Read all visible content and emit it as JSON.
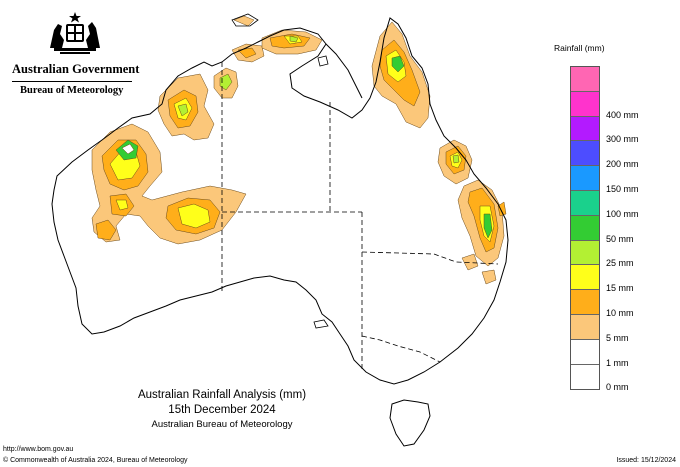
{
  "header": {
    "government": "Australian Government",
    "bureau": "Bureau of Meteorology"
  },
  "legend": {
    "title": "Rainfall (mm)",
    "classes": [
      {
        "label": "",
        "color": "#ff66b3"
      },
      {
        "label": "400 mm",
        "color": "#ff33cc"
      },
      {
        "label": "300 mm",
        "color": "#b31aff"
      },
      {
        "label": "200 mm",
        "color": "#4d4dff"
      },
      {
        "label": "150 mm",
        "color": "#1a99ff"
      },
      {
        "label": "100 mm",
        "color": "#1ad18c"
      },
      {
        "label": "50 mm",
        "color": "#33cc33"
      },
      {
        "label": "25 mm",
        "color": "#b3f033"
      },
      {
        "label": "15 mm",
        "color": "#ffff1a"
      },
      {
        "label": "10 mm",
        "color": "#ffae1a"
      },
      {
        "label": "5 mm",
        "color": "#fbc77a"
      },
      {
        "label": "1 mm",
        "color": "#ffffff"
      },
      {
        "label": "0 mm",
        "color": "#ffffff"
      }
    ]
  },
  "title": {
    "line1": "Australian Rainfall Analysis (mm)",
    "line2": "15th December 2024",
    "line3": "Australian Bureau of Meteorology"
  },
  "footer": {
    "url": "http://www.bom.gov.au",
    "copyright": "© Commonwealth of Australia 2024, Bureau of Meteorology",
    "issued": "Issued: 15/12/2024"
  },
  "colors": {
    "light_orange": "#fbc77a",
    "orange": "#ffae1a",
    "yellow": "#ffff1a",
    "yellow_green": "#b3f033",
    "green": "#33cc33",
    "outline": "#000000"
  }
}
